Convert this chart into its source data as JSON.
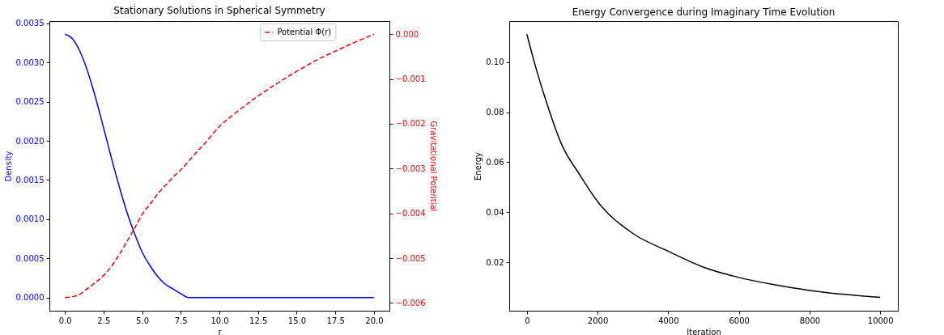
{
  "chart_data": [
    {
      "type": "line",
      "title": "Stationary Solutions in Spherical Symmetry",
      "xlabel": "r",
      "ylabel": "Density",
      "y2label": "Gravitational Potential",
      "legend": "top right",
      "x": [
        0,
        0.5,
        1,
        1.5,
        2,
        2.5,
        3,
        3.5,
        4,
        4.5,
        5,
        5.5,
        6,
        6.5,
        7,
        7.5,
        8,
        8.5,
        9,
        10,
        11,
        12.5,
        13.5,
        15,
        16.5,
        17.5,
        18.5,
        20
      ],
      "xlim": [
        -1,
        21
      ],
      "xticks": [
        {
          "value": 0,
          "label": "0.0"
        },
        {
          "value": 2.5,
          "label": "2.5"
        },
        {
          "value": 5,
          "label": "5.0"
        },
        {
          "value": 7.5,
          "label": "7.5"
        },
        {
          "value": 10,
          "label": "10.0"
        },
        {
          "value": 12.5,
          "label": "12.5"
        },
        {
          "value": 15,
          "label": "15.0"
        },
        {
          "value": 17.5,
          "label": "17.5"
        },
        {
          "value": 20,
          "label": "20.0"
        }
      ],
      "ylim": [
        -0.000168,
        0.003528
      ],
      "yticks": [
        {
          "value": 0,
          "label": "0.0000"
        },
        {
          "value": 0.0005,
          "label": "0.0005"
        },
        {
          "value": 0.001,
          "label": "0.0010"
        },
        {
          "value": 0.0015,
          "label": "0.0015"
        },
        {
          "value": 0.002,
          "label": "0.0020"
        },
        {
          "value": 0.0025,
          "label": "0.0025"
        },
        {
          "value": 0.003,
          "label": "0.0030"
        },
        {
          "value": 0.0035,
          "label": "0.0035"
        }
      ],
      "y2lim": [
        -0.006174,
        0.000294
      ],
      "y2ticks": [
        {
          "value": -0.006,
          "label": "−0.006"
        },
        {
          "value": -0.005,
          "label": "−0.005"
        },
        {
          "value": -0.004,
          "label": "−0.004"
        },
        {
          "value": -0.003,
          "label": "−0.003"
        },
        {
          "value": -0.002,
          "label": "−0.002"
        },
        {
          "value": -0.001,
          "label": "−0.001"
        },
        {
          "value": 0,
          "label": "0.000"
        }
      ],
      "series": [
        {
          "color": "#0000ff",
          "line_style": "solid",
          "values": [
            0.00336,
            0.0033,
            0.00313,
            0.00287,
            0.00254,
            0.00217,
            0.00179,
            0.00143,
            0.0011,
            0.00082,
            0.00058,
            0.00041,
            0.00027,
            0.00017,
            0.00011,
            5e-05,
            0,
            0,
            0,
            0,
            0,
            0,
            0,
            0,
            0,
            0,
            0,
            0
          ]
        },
        {
          "name": "Potential Φ(r)",
          "color": "#ff0000",
          "axis": "y2",
          "line_style": "dashed",
          "values": [
            -0.00588,
            -0.00586,
            -0.0058,
            -0.00567,
            -0.00554,
            -0.00539,
            -0.00519,
            -0.00493,
            -0.00464,
            -0.00434,
            -0.00402,
            -0.0038,
            -0.00357,
            -0.00338,
            -0.00319,
            -0.00303,
            -0.00284,
            -0.00264,
            -0.00246,
            -0.00206,
            -0.00177,
            -0.00138,
            -0.00115,
            -0.00083,
            -0.00054,
            -0.00038,
            -0.00022,
            0
          ]
        }
      ]
    },
    {
      "type": "line",
      "title": "Energy Convergence during Imaginary Time Evolution",
      "xlabel": "Iteration",
      "ylabel": "Energy",
      "x": [
        0,
        250,
        500,
        1000,
        1500,
        2000,
        3000,
        4000,
        5000,
        6000,
        7000,
        8000,
        9000,
        10000
      ],
      "xlim": [
        -500,
        10500
      ],
      "xticks": [
        0,
        2000,
        4000,
        6000,
        8000,
        10000
      ],
      "ylim": [
        0.00058,
        0.1165
      ],
      "yticks": [
        0.02,
        0.04,
        0.06,
        0.08,
        {
          "value": 0.1,
          "label": "0.10"
        }
      ],
      "series": [
        {
          "color": "#000000",
          "line_style": "solid",
          "values": [
            0.1112,
            0.098,
            0.0864,
            0.0666,
            0.0549,
            0.0443,
            0.0315,
            0.0244,
            0.018,
            0.0139,
            0.011,
            0.0087,
            0.0071,
            0.0059
          ]
        }
      ]
    }
  ]
}
